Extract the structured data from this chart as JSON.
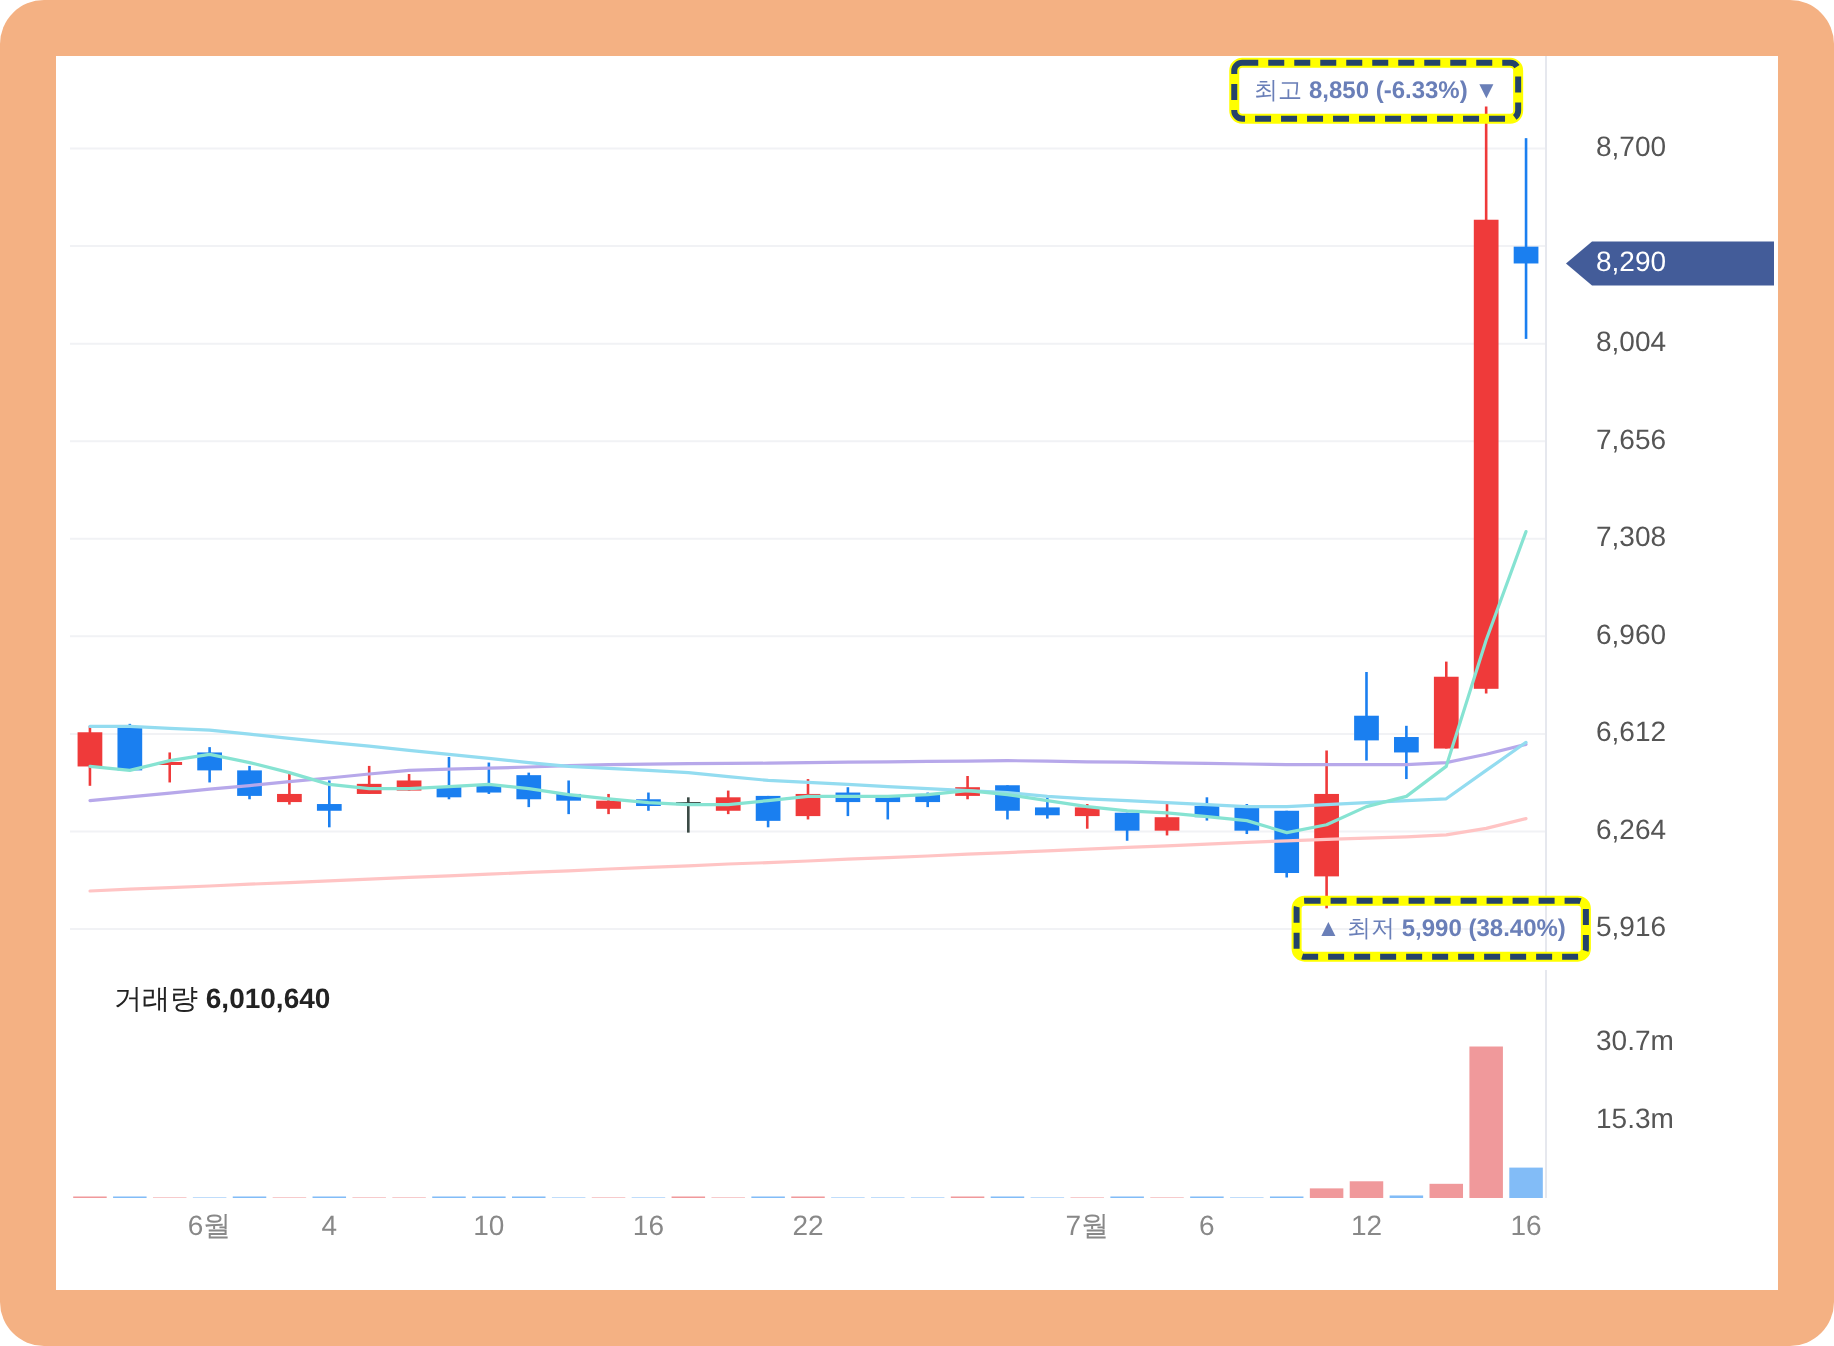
{
  "chart_data": [
    {
      "type": "candlestick",
      "ohlc": [
        [
          6496,
          6641,
          6427,
          6618
        ],
        [
          6637,
          6648,
          6482,
          6482
        ],
        [
          6505,
          6546,
          6439,
          6512
        ],
        [
          6546,
          6565,
          6439,
          6482
        ],
        [
          6482,
          6498,
          6379,
          6391
        ],
        [
          6369,
          6469,
          6360,
          6398
        ],
        [
          6362,
          6446,
          6279,
          6338
        ],
        [
          6398,
          6498,
          6398,
          6434
        ],
        [
          6410,
          6469,
          6410,
          6446
        ],
        [
          6422,
          6530,
          6379,
          6386
        ],
        [
          6429,
          6510,
          6398,
          6403
        ],
        [
          6465,
          6474,
          6351,
          6379
        ],
        [
          6398,
          6446,
          6326,
          6374
        ],
        [
          6345,
          6398,
          6326,
          6374
        ],
        [
          6379,
          6403,
          6338,
          6355
        ],
        [
          6369,
          6386,
          6260,
          6369
        ],
        [
          6338,
          6410,
          6326,
          6386
        ],
        [
          6391,
          6391,
          6279,
          6302
        ],
        [
          6319,
          6451,
          6307,
          6398
        ],
        [
          6403,
          6422,
          6319,
          6369
        ],
        [
          6393,
          6393,
          6307,
          6369
        ],
        [
          6398,
          6403,
          6351,
          6369
        ],
        [
          6391,
          6462,
          6379,
          6422
        ],
        [
          6429,
          6429,
          6307,
          6338
        ],
        [
          6350,
          6391,
          6310,
          6322
        ],
        [
          6319,
          6362,
          6274,
          6350
        ],
        [
          6331,
          6331,
          6231,
          6267
        ],
        [
          6267,
          6362,
          6250,
          6315
        ],
        [
          6355,
          6386,
          6303,
          6315
        ],
        [
          6350,
          6362,
          6255,
          6267
        ],
        [
          6338,
          6338,
          6100,
          6116
        ],
        [
          6104,
          6553,
          5990,
          6398
        ],
        [
          6677,
          6833,
          6517,
          6589
        ],
        [
          6601,
          6641,
          6451,
          6546
        ],
        [
          6560,
          6870,
          6560,
          6816
        ],
        [
          6773,
          8850,
          6756,
          8446
        ],
        [
          8350,
          8737,
          8021,
          8290
        ]
      ],
      "colors": [
        "#ef3a3a",
        "#1a7ff0",
        "#ef3a3a",
        "#1a7ff0",
        "#1a7ff0",
        "#ef3a3a",
        "#1a7ff0",
        "#ef3a3a",
        "#ef3a3a",
        "#1a7ff0",
        "#1a7ff0",
        "#1a7ff0",
        "#1a7ff0",
        "#ef3a3a",
        "#1a7ff0",
        "#3b4a45",
        "#ef3a3a",
        "#1a7ff0",
        "#ef3a3a",
        "#1a7ff0",
        "#1a7ff0",
        "#1a7ff0",
        "#ef3a3a",
        "#1a7ff0",
        "#1a7ff0",
        "#ef3a3a",
        "#1a7ff0",
        "#ef3a3a",
        "#1a7ff0",
        "#1a7ff0",
        "#1a7ff0",
        "#ef3a3a",
        "#1a7ff0",
        "#1a7ff0",
        "#ef3a3a",
        "#ef3a3a",
        "#1a7ff0"
      ],
      "series": [
        {
          "type": "line",
          "color": "#ffc4c4",
          "values": [
            6052,
            6058,
            6064,
            6070,
            6076,
            6082,
            6088,
            6094,
            6100,
            6106,
            6112,
            6118,
            6124,
            6130,
            6136,
            6142,
            6148,
            6153,
            6159,
            6165,
            6171,
            6177,
            6183,
            6189,
            6195,
            6201,
            6207,
            6213,
            6219,
            6225,
            6231,
            6236,
            6240,
            6245,
            6252,
            6275,
            6310
          ]
        },
        {
          "type": "line",
          "color": "#b7a8ea",
          "values": [
            6374,
            6388,
            6401,
            6415,
            6428,
            6442,
            6455,
            6469,
            6482,
            6486,
            6490,
            6494,
            6499,
            6503,
            6504,
            6506,
            6507,
            6508,
            6510,
            6511,
            6513,
            6514,
            6515,
            6517,
            6515,
            6513,
            6511,
            6509,
            6507,
            6505,
            6503,
            6503,
            6503,
            6503,
            6510,
            6540,
            6575
          ]
        },
        {
          "type": "line",
          "color": "#93dcf0",
          "values": [
            6639,
            6639,
            6632,
            6625,
            6611,
            6596,
            6582,
            6568,
            6553,
            6539,
            6525,
            6510,
            6496,
            6489,
            6482,
            6474,
            6460,
            6446,
            6439,
            6432,
            6424,
            6417,
            6410,
            6403,
            6389,
            6381,
            6374,
            6367,
            6360,
            6353,
            6353,
            6360,
            6367,
            6374,
            6381,
            6482,
            6582
          ]
        },
        {
          "type": "line",
          "color": "#86e3d2",
          "values": [
            6496,
            6482,
            6517,
            6539,
            6510,
            6474,
            6432,
            6417,
            6417,
            6424,
            6432,
            6417,
            6396,
            6381,
            6367,
            6360,
            6360,
            6374,
            6389,
            6389,
            6389,
            6396,
            6410,
            6396,
            6374,
            6353,
            6338,
            6331,
            6317,
            6303,
            6260,
            6288,
            6353,
            6389,
            6496,
            6947,
            7334
          ]
        }
      ],
      "ylim": [
        5820,
        9030
      ],
      "yticks": [
        {
          "value": 5916,
          "label": "5,916"
        },
        {
          "value": 6264,
          "label": "6,264"
        },
        {
          "value": 6612,
          "label": "6,612"
        },
        {
          "value": 6960,
          "label": "6,960"
        },
        {
          "value": 7308,
          "label": "7,308"
        },
        {
          "value": 7656,
          "label": "7,656"
        },
        {
          "value": 8004,
          "label": "8,004"
        },
        {
          "value": 8352,
          "label": null
        },
        {
          "value": 8700,
          "label": "8,700"
        }
      ],
      "grid": "y",
      "tick_labels": "y",
      "annotations": [
        "최고 8,850 (-6.33%) ▼",
        "▲ 최저 5,990 (38.40%)",
        "8,290"
      ]
    },
    {
      "type": "bar",
      "categories": [
        null,
        null,
        null,
        "6월",
        null,
        null,
        "4",
        null,
        null,
        null,
        "10",
        null,
        null,
        null,
        "16",
        null,
        null,
        null,
        "22",
        null,
        null,
        null,
        null,
        null,
        null,
        "7월",
        null,
        null,
        "6",
        null,
        null,
        null,
        "12",
        null,
        null,
        null,
        "16"
      ],
      "values": [
        0.3,
        0.3,
        0.1,
        0.1,
        0.3,
        0.1,
        0.3,
        0.1,
        0.1,
        0.3,
        0.3,
        0.3,
        0.1,
        0.1,
        0.1,
        0.3,
        0.1,
        0.3,
        0.3,
        0.1,
        0.1,
        0.1,
        0.3,
        0.3,
        0.1,
        0.1,
        0.3,
        0.1,
        0.3,
        0.1,
        0.3,
        1.9,
        3.3,
        0.5,
        2.8,
        29.9,
        6.0
      ],
      "colors": [
        "#f0999b",
        "#82bcf7",
        "#f0999b",
        "#82bcf7",
        "#82bcf7",
        "#f0999b",
        "#82bcf7",
        "#f0999b",
        "#f0999b",
        "#82bcf7",
        "#82bcf7",
        "#82bcf7",
        "#82bcf7",
        "#f0999b",
        "#82bcf7",
        "#f0999b",
        "#f0999b",
        "#82bcf7",
        "#f0999b",
        "#82bcf7",
        "#82bcf7",
        "#82bcf7",
        "#f0999b",
        "#82bcf7",
        "#82bcf7",
        "#f0999b",
        "#82bcf7",
        "#f0999b",
        "#82bcf7",
        "#82bcf7",
        "#82bcf7",
        "#f0999b",
        "#f0999b",
        "#82bcf7",
        "#f0999b",
        "#f0999b",
        "#82bcf7"
      ],
      "ylim": [
        0,
        45
      ],
      "yticks": [
        {
          "value": 15.3,
          "label": "15.3m"
        },
        {
          "value": 30.7,
          "label": "30.7m"
        }
      ],
      "annotations": [
        "거래량 6,010,640"
      ]
    }
  ]
}
